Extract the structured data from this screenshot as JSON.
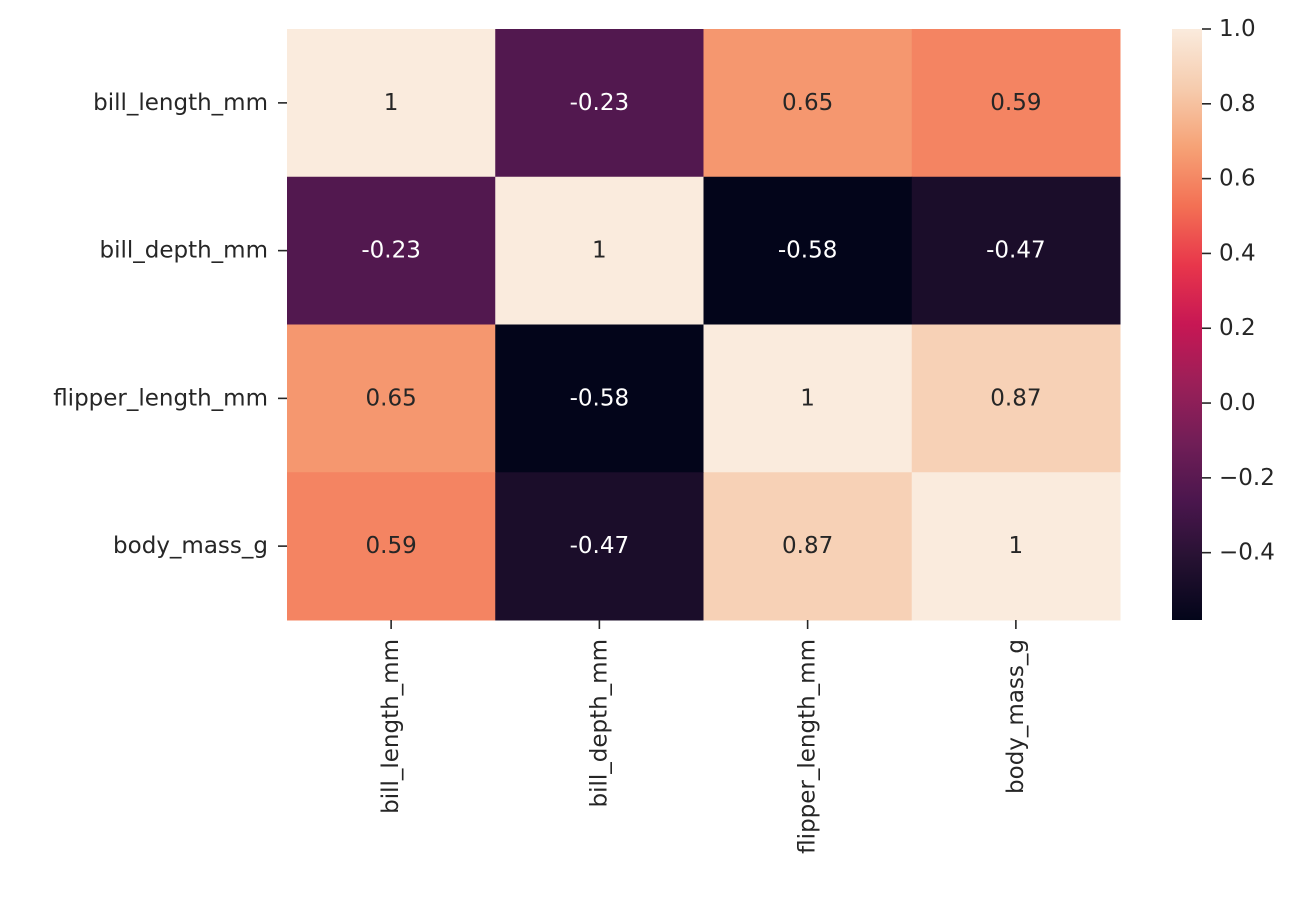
{
  "chart_data": {
    "type": "heatmap",
    "title": "",
    "xlabel": "",
    "ylabel": "",
    "x_categories": [
      "bill_length_mm",
      "bill_depth_mm",
      "flipper_length_mm",
      "body_mass_g"
    ],
    "y_categories": [
      "bill_length_mm",
      "bill_depth_mm",
      "flipper_length_mm",
      "body_mass_g"
    ],
    "values": [
      [
        1,
        -0.23,
        0.65,
        0.59
      ],
      [
        -0.23,
        1,
        -0.58,
        -0.47
      ],
      [
        0.65,
        -0.58,
        1,
        0.87
      ],
      [
        0.59,
        -0.47,
        0.87,
        1
      ]
    ],
    "annotations": [
      [
        "1",
        "-0.23",
        "0.65",
        "0.59"
      ],
      [
        "-0.23",
        "1",
        "-0.58",
        "-0.47"
      ],
      [
        "0.65",
        "-0.58",
        "1",
        "0.87"
      ],
      [
        "0.59",
        "-0.47",
        "0.87",
        "1"
      ]
    ],
    "colorscale": "rocket",
    "colorbar": {
      "vmin": -0.58,
      "vmax": 1.0,
      "ticks": [
        1.0,
        0.8,
        0.6,
        0.4,
        0.2,
        0.0,
        -0.2,
        -0.4
      ],
      "tick_labels": [
        "1.0",
        "0.8",
        "0.6",
        "0.4",
        "0.2",
        "0.0",
        "−0.2",
        "−0.4"
      ]
    },
    "grid": false,
    "legend": "colorbar-right"
  }
}
